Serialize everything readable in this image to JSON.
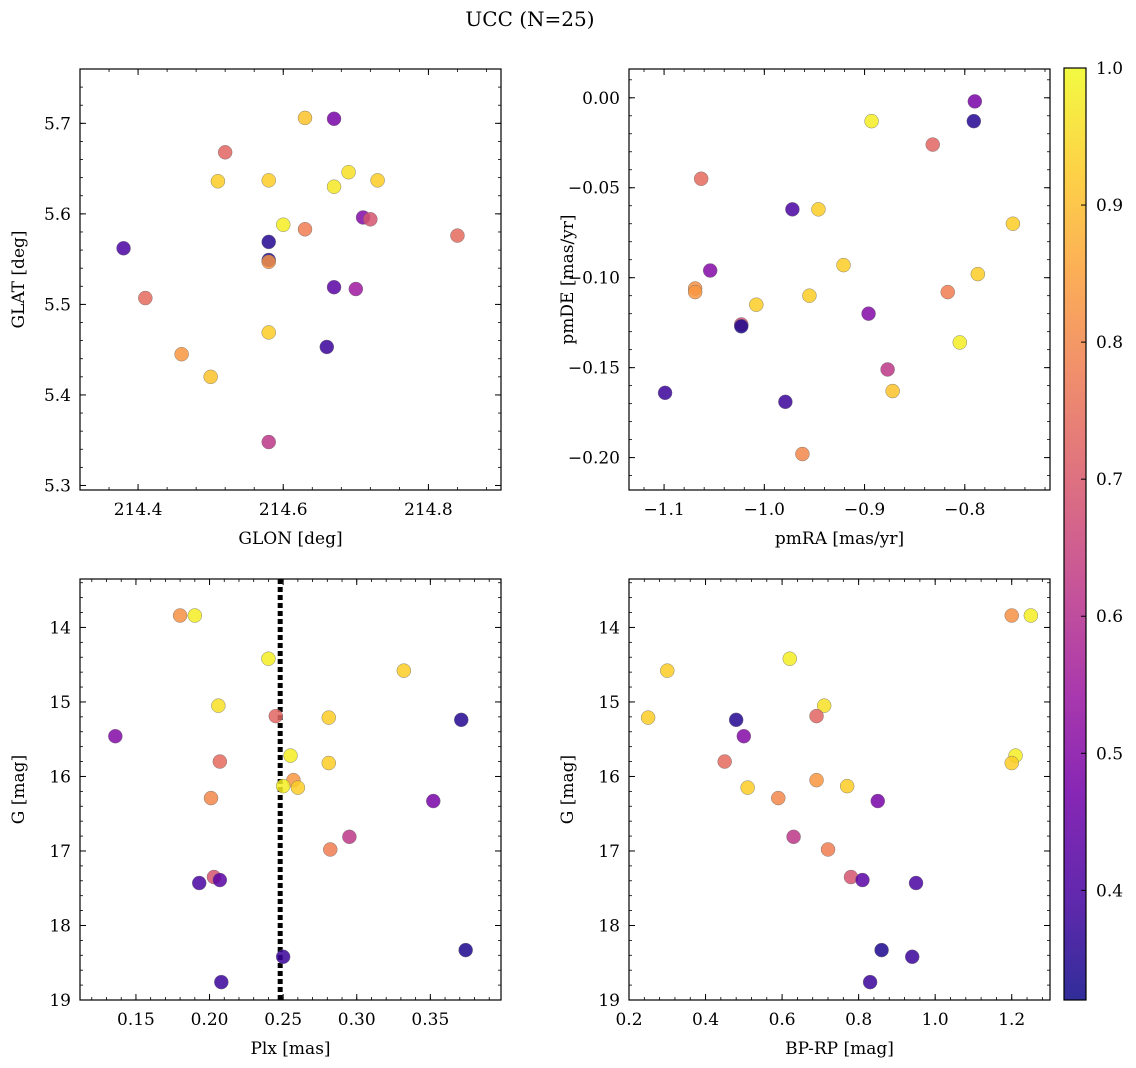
{
  "title": "UCC (N=25)",
  "colorbar": {
    "min": 0.32,
    "max": 1.0,
    "ticks": [
      0.4,
      0.5,
      0.6,
      0.7,
      0.8,
      0.9,
      1.0
    ],
    "tick_labels": [
      "0.4",
      "0.5",
      "0.6",
      "0.7",
      "0.8",
      "0.9",
      "1.0"
    ],
    "colormap": "plasma",
    "colormap_stops": [
      "#0d0887",
      "#46039f",
      "#7201a8",
      "#9c179e",
      "#bd3786",
      "#d8576b",
      "#ed7953",
      "#fb9f3a",
      "#fdca26",
      "#f0f921"
    ]
  },
  "chart_data": [
    {
      "type": "scatter",
      "id": "position",
      "xlabel": "GLON [deg]",
      "ylabel": "GLAT [deg]",
      "xlim": [
        214.32,
        214.9
      ],
      "ylim": [
        5.295,
        5.76
      ],
      "xticks": [
        214.4,
        214.6,
        214.8
      ],
      "xtick_labels": [
        "214.4",
        "214.6",
        "214.8"
      ],
      "yticks": [
        5.3,
        5.4,
        5.5,
        5.6,
        5.7
      ],
      "ytick_labels": [
        "5.3",
        "5.4",
        "5.5",
        "5.6",
        "5.7"
      ],
      "points": [
        {
          "x": 214.63,
          "y": 5.706,
          "c": 0.91
        },
        {
          "x": 214.67,
          "y": 5.705,
          "c": 0.48
        },
        {
          "x": 214.52,
          "y": 5.668,
          "c": 0.73
        },
        {
          "x": 214.51,
          "y": 5.636,
          "c": 0.93
        },
        {
          "x": 214.58,
          "y": 5.637,
          "c": 0.93
        },
        {
          "x": 214.69,
          "y": 5.646,
          "c": 0.96
        },
        {
          "x": 214.67,
          "y": 5.63,
          "c": 0.97
        },
        {
          "x": 214.73,
          "y": 5.637,
          "c": 0.93
        },
        {
          "x": 214.71,
          "y": 5.596,
          "c": 0.5
        },
        {
          "x": 214.72,
          "y": 5.594,
          "c": 0.69
        },
        {
          "x": 214.6,
          "y": 5.588,
          "c": 0.98
        },
        {
          "x": 214.63,
          "y": 5.583,
          "c": 0.78
        },
        {
          "x": 214.84,
          "y": 5.576,
          "c": 0.74
        },
        {
          "x": 214.38,
          "y": 5.562,
          "c": 0.4
        },
        {
          "x": 214.58,
          "y": 5.569,
          "c": 0.35
        },
        {
          "x": 214.58,
          "y": 5.549,
          "c": 0.34
        },
        {
          "x": 214.58,
          "y": 5.547,
          "c": 0.82
        },
        {
          "x": 214.67,
          "y": 5.519,
          "c": 0.43
        },
        {
          "x": 214.7,
          "y": 5.517,
          "c": 0.55
        },
        {
          "x": 214.41,
          "y": 5.507,
          "c": 0.74
        },
        {
          "x": 214.58,
          "y": 5.469,
          "c": 0.93
        },
        {
          "x": 214.66,
          "y": 5.453,
          "c": 0.38
        },
        {
          "x": 214.46,
          "y": 5.445,
          "c": 0.83
        },
        {
          "x": 214.5,
          "y": 5.42,
          "c": 0.91
        },
        {
          "x": 214.58,
          "y": 5.348,
          "c": 0.62
        }
      ]
    },
    {
      "type": "scatter",
      "id": "proper-motion",
      "xlabel": "pmRA [mas/yr]",
      "ylabel": "pmDE [mas/yr]",
      "xlim": [
        -1.135,
        -0.715
      ],
      "ylim": [
        -0.218,
        0.016
      ],
      "xticks": [
        -1.1,
        -1.0,
        -0.9,
        -0.8
      ],
      "xtick_labels": [
        "−1.1",
        "−1.0",
        "−0.9",
        "−0.8"
      ],
      "yticks": [
        -0.2,
        -0.15,
        -0.1,
        -0.05,
        0.0
      ],
      "ytick_labels": [
        "−0.20",
        "−0.15",
        "−0.10",
        "−0.05",
        "0.00"
      ],
      "points": [
        {
          "x": -0.79,
          "y": -0.002,
          "c": 0.48
        },
        {
          "x": -0.893,
          "y": -0.013,
          "c": 0.98
        },
        {
          "x": -0.791,
          "y": -0.013,
          "c": 0.35
        },
        {
          "x": -0.832,
          "y": -0.026,
          "c": 0.73
        },
        {
          "x": -1.063,
          "y": -0.045,
          "c": 0.74
        },
        {
          "x": -0.972,
          "y": -0.062,
          "c": 0.4
        },
        {
          "x": -0.946,
          "y": -0.062,
          "c": 0.93
        },
        {
          "x": -0.752,
          "y": -0.07,
          "c": 0.93
        },
        {
          "x": -0.921,
          "y": -0.093,
          "c": 0.93
        },
        {
          "x": -1.054,
          "y": -0.096,
          "c": 0.5
        },
        {
          "x": -0.787,
          "y": -0.098,
          "c": 0.93
        },
        {
          "x": -1.069,
          "y": -0.106,
          "c": 0.82
        },
        {
          "x": -1.069,
          "y": -0.108,
          "c": 0.83
        },
        {
          "x": -0.817,
          "y": -0.108,
          "c": 0.78
        },
        {
          "x": -0.955,
          "y": -0.11,
          "c": 0.93
        },
        {
          "x": -1.008,
          "y": -0.115,
          "c": 0.93
        },
        {
          "x": -0.896,
          "y": -0.12,
          "c": 0.5
        },
        {
          "x": -1.023,
          "y": -0.126,
          "c": 0.69
        },
        {
          "x": -1.023,
          "y": -0.127,
          "c": 0.34
        },
        {
          "x": -0.805,
          "y": -0.136,
          "c": 0.98
        },
        {
          "x": -0.877,
          "y": -0.151,
          "c": 0.62
        },
        {
          "x": -0.872,
          "y": -0.163,
          "c": 0.91
        },
        {
          "x": -1.099,
          "y": -0.164,
          "c": 0.38
        },
        {
          "x": -0.979,
          "y": -0.169,
          "c": 0.38
        },
        {
          "x": -0.962,
          "y": -0.198,
          "c": 0.8
        }
      ]
    },
    {
      "type": "scatter",
      "id": "parallax-magnitude",
      "xlabel": "Plx [mas]",
      "ylabel": "G [mag]",
      "xlim": [
        0.112,
        0.398
      ],
      "ylim": [
        19.0,
        13.35
      ],
      "y_inverted": true,
      "xticks": [
        0.15,
        0.2,
        0.25,
        0.3,
        0.35
      ],
      "xtick_labels": [
        "0.15",
        "0.20",
        "0.25",
        "0.30",
        "0.35"
      ],
      "yticks": [
        14,
        15,
        16,
        17,
        18,
        19
      ],
      "ytick_labels": [
        "14",
        "15",
        "16",
        "17",
        "18",
        "19"
      ],
      "reference_line": {
        "x": 0.248,
        "style": "dotted"
      },
      "points": [
        {
          "x": 0.18,
          "y": 13.84,
          "c": 0.82
        },
        {
          "x": 0.19,
          "y": 13.84,
          "c": 0.98
        },
        {
          "x": 0.24,
          "y": 14.42,
          "c": 0.98
        },
        {
          "x": 0.332,
          "y": 14.58,
          "c": 0.93
        },
        {
          "x": 0.206,
          "y": 15.05,
          "c": 0.96
        },
        {
          "x": 0.245,
          "y": 15.19,
          "c": 0.73
        },
        {
          "x": 0.281,
          "y": 15.21,
          "c": 0.93
        },
        {
          "x": 0.371,
          "y": 15.24,
          "c": 0.35
        },
        {
          "x": 0.136,
          "y": 15.46,
          "c": 0.5
        },
        {
          "x": 0.255,
          "y": 15.72,
          "c": 0.98
        },
        {
          "x": 0.207,
          "y": 15.8,
          "c": 0.74
        },
        {
          "x": 0.281,
          "y": 15.82,
          "c": 0.93
        },
        {
          "x": 0.257,
          "y": 16.05,
          "c": 0.83
        },
        {
          "x": 0.25,
          "y": 16.13,
          "c": 0.98
        },
        {
          "x": 0.26,
          "y": 16.15,
          "c": 0.93
        },
        {
          "x": 0.201,
          "y": 16.29,
          "c": 0.8
        },
        {
          "x": 0.352,
          "y": 16.33,
          "c": 0.48
        },
        {
          "x": 0.295,
          "y": 16.81,
          "c": 0.62
        },
        {
          "x": 0.282,
          "y": 16.98,
          "c": 0.78
        },
        {
          "x": 0.203,
          "y": 17.35,
          "c": 0.69
        },
        {
          "x": 0.207,
          "y": 17.39,
          "c": 0.43
        },
        {
          "x": 0.193,
          "y": 17.43,
          "c": 0.4
        },
        {
          "x": 0.374,
          "y": 18.33,
          "c": 0.34
        },
        {
          "x": 0.25,
          "y": 18.42,
          "c": 0.38
        },
        {
          "x": 0.208,
          "y": 18.76,
          "c": 0.38
        }
      ]
    },
    {
      "type": "scatter",
      "id": "color-magnitude",
      "xlabel": "BP-RP [mag]",
      "ylabel": "G [mag]",
      "xlim": [
        0.2,
        1.3
      ],
      "ylim": [
        19.0,
        13.35
      ],
      "y_inverted": true,
      "xticks": [
        0.2,
        0.4,
        0.6,
        0.8,
        1.0,
        1.2
      ],
      "xtick_labels": [
        "0.2",
        "0.4",
        "0.6",
        "0.8",
        "1.0",
        "1.2"
      ],
      "yticks": [
        14,
        15,
        16,
        17,
        18,
        19
      ],
      "ytick_labels": [
        "14",
        "15",
        "16",
        "17",
        "18",
        "19"
      ],
      "points": [
        {
          "x": 1.2,
          "y": 13.84,
          "c": 0.82
        },
        {
          "x": 1.25,
          "y": 13.84,
          "c": 0.98
        },
        {
          "x": 0.62,
          "y": 14.42,
          "c": 0.98
        },
        {
          "x": 0.3,
          "y": 14.58,
          "c": 0.93
        },
        {
          "x": 0.71,
          "y": 15.05,
          "c": 0.96
        },
        {
          "x": 0.69,
          "y": 15.19,
          "c": 0.73
        },
        {
          "x": 0.25,
          "y": 15.21,
          "c": 0.93
        },
        {
          "x": 0.48,
          "y": 15.24,
          "c": 0.35
        },
        {
          "x": 0.5,
          "y": 15.46,
          "c": 0.5
        },
        {
          "x": 1.21,
          "y": 15.72,
          "c": 0.98
        },
        {
          "x": 0.45,
          "y": 15.8,
          "c": 0.74
        },
        {
          "x": 1.2,
          "y": 15.82,
          "c": 0.93
        },
        {
          "x": 0.69,
          "y": 16.05,
          "c": 0.83
        },
        {
          "x": 0.77,
          "y": 16.13,
          "c": 0.93
        },
        {
          "x": 0.51,
          "y": 16.15,
          "c": 0.93
        },
        {
          "x": 0.59,
          "y": 16.29,
          "c": 0.8
        },
        {
          "x": 0.85,
          "y": 16.33,
          "c": 0.48
        },
        {
          "x": 0.63,
          "y": 16.81,
          "c": 0.62
        },
        {
          "x": 0.72,
          "y": 16.98,
          "c": 0.78
        },
        {
          "x": 0.78,
          "y": 17.35,
          "c": 0.69
        },
        {
          "x": 0.81,
          "y": 17.39,
          "c": 0.43
        },
        {
          "x": 0.95,
          "y": 17.43,
          "c": 0.4
        },
        {
          "x": 0.86,
          "y": 18.33,
          "c": 0.34
        },
        {
          "x": 0.94,
          "y": 18.42,
          "c": 0.38
        },
        {
          "x": 0.83,
          "y": 18.76,
          "c": 0.38
        }
      ]
    }
  ]
}
